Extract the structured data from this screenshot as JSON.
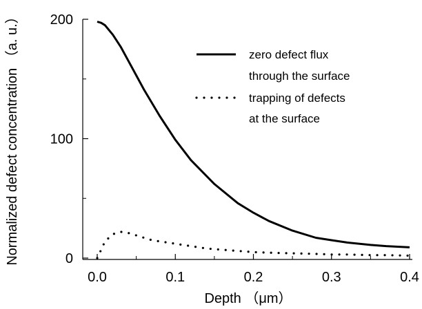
{
  "chart_data": {
    "type": "line",
    "xlabel": "Depth （μm）",
    "ylabel": "Normalized defect concentration （a. u.）",
    "xlim": [
      0.0,
      0.4
    ],
    "ylim": [
      0,
      200
    ],
    "x_ticks": [
      0.0,
      0.1,
      0.2,
      0.3,
      0.4
    ],
    "x_tick_labels": [
      "0.0",
      "0.1",
      "0.2",
      "0.3",
      "0.4"
    ],
    "y_ticks": [
      0,
      100,
      200
    ],
    "y_tick_labels": [
      "0",
      "100",
      "200"
    ],
    "grid": false,
    "legend_position": "top-right",
    "legend": [
      {
        "line1": "zero defect flux",
        "line2": "through the surface",
        "style": "solid"
      },
      {
        "line1": "trapping of defects",
        "line2": "at the surface",
        "style": "dotted"
      }
    ],
    "series": [
      {
        "style": "solid",
        "x": [
          0.0,
          0.005,
          0.01,
          0.02,
          0.03,
          0.04,
          0.05,
          0.06,
          0.08,
          0.1,
          0.12,
          0.15,
          0.18,
          0.2,
          0.22,
          0.25,
          0.28,
          0.3,
          0.32,
          0.35,
          0.37,
          0.4
        ],
        "y": [
          198,
          197,
          195,
          187,
          177,
          165,
          153,
          141,
          119,
          99,
          82,
          62,
          46,
          38,
          31,
          23,
          17,
          15,
          13,
          11,
          10,
          9
        ]
      },
      {
        "style": "dotted",
        "x": [
          0.0,
          0.005,
          0.01,
          0.02,
          0.03,
          0.04,
          0.05,
          0.06,
          0.07,
          0.08,
          0.09,
          0.1,
          0.12,
          0.14,
          0.16,
          0.18,
          0.2,
          0.22,
          0.25,
          0.28,
          0.3,
          0.32,
          0.35,
          0.37,
          0.4
        ],
        "y": [
          0,
          7,
          14,
          20,
          22,
          21,
          19,
          17,
          15,
          14,
          13,
          12,
          10,
          8,
          7,
          6,
          5,
          4.5,
          4,
          3.5,
          3,
          3,
          2.5,
          2.5,
          2
        ]
      }
    ]
  }
}
